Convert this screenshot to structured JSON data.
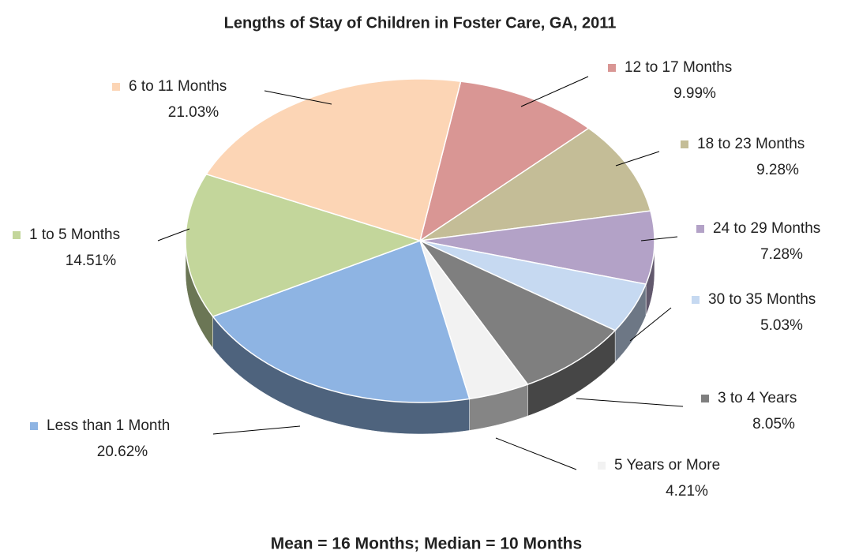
{
  "chart_data": {
    "type": "pie",
    "title": "Lengths of Stay of Children in Foster Care, GA, 2011",
    "footnote": "Mean = 16 Months; Median = 10 Months",
    "categories": [
      "12 to 17 Months",
      "18 to 23 Months",
      "24 to 29 Months",
      "30 to 35 Months",
      "3 to 4 Years",
      "5 Years or More",
      "Less than 1 Month",
      "1 to 5 Months",
      "6 to 11 Months"
    ],
    "values": [
      9.99,
      9.28,
      7.28,
      5.03,
      8.05,
      4.21,
      20.62,
      14.51,
      21.03
    ],
    "value_labels": [
      "9.99%",
      "9.28%",
      "7.28%",
      "5.03%",
      "8.05%",
      "4.21%",
      "20.62%",
      "14.51%",
      "21.03%"
    ],
    "colors": [
      "#d99694",
      "#c4bd97",
      "#b3a2c7",
      "#c6d9f1",
      "#7f7f7f",
      "#f2f2f2",
      "#8eb4e3",
      "#c3d69b",
      "#fcd5b5"
    ]
  }
}
